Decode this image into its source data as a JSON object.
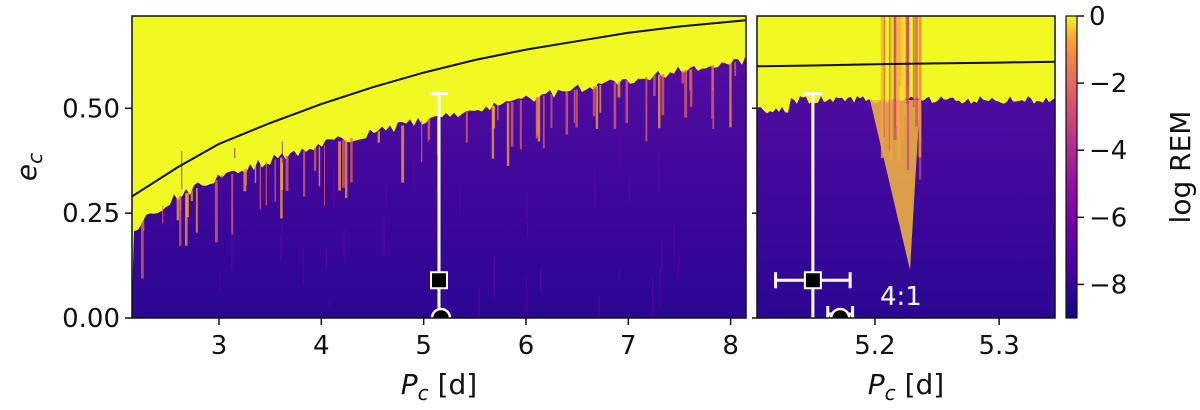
{
  "chart_data": [
    {
      "type": "heatmap",
      "panel": "left",
      "xlabel": "P_c [d]",
      "ylabel": "e_c",
      "xlim": [
        2.15,
        8.15
      ],
      "ylim": [
        0.0,
        0.72
      ],
      "xticks": [
        3,
        4,
        5,
        6,
        7,
        8
      ],
      "xtick_labels": [
        "3",
        "4",
        "5",
        "6",
        "7",
        "8"
      ],
      "yticks": [
        0.0,
        0.25,
        0.5
      ],
      "ytick_labels": [
        "0.00",
        "0.25",
        "0.50"
      ],
      "stability_boundary": {
        "x": [
          2.15,
          2.6,
          3.0,
          3.5,
          4.0,
          4.5,
          5.0,
          5.5,
          6.0,
          6.5,
          7.0,
          7.5,
          8.15
        ],
        "y": [
          0.29,
          0.36,
          0.415,
          0.465,
          0.51,
          0.55,
          0.585,
          0.615,
          0.64,
          0.66,
          0.68,
          0.695,
          0.71
        ]
      },
      "measured_point": {
        "x": 5.15,
        "y": 0.09,
        "yerr_low": 0.09,
        "yerr_high": 0.445,
        "marker": "square"
      },
      "circle_point": {
        "x": 5.17,
        "y": 0.0,
        "marker": "circle"
      }
    },
    {
      "type": "heatmap",
      "panel": "right",
      "xlabel": "P_c [d]",
      "xlim": [
        5.105,
        5.345
      ],
      "ylim": [
        0.0,
        0.72
      ],
      "xticks": [
        5.2,
        5.3
      ],
      "xtick_labels": [
        "5.2",
        "5.3"
      ],
      "stability_boundary": {
        "x": [
          5.105,
          5.15,
          5.2,
          5.25,
          5.3,
          5.345
        ],
        "y": [
          0.6,
          0.602,
          0.605,
          0.607,
          0.609,
          0.611
        ]
      },
      "measured_point": {
        "x": 5.15,
        "y": 0.09,
        "xerr": 0.03,
        "yerr_low": 0.09,
        "yerr_high": 0.445,
        "marker": "square"
      },
      "circle_point": {
        "x": 5.172,
        "y": 0.0,
        "xerr": 0.01,
        "marker": "circle"
      },
      "annotation": "4:1"
    }
  ],
  "colorbar": {
    "label": "log REM",
    "range": [
      -9,
      0
    ],
    "ticks": [
      0,
      -2,
      -4,
      -6,
      -8
    ],
    "tick_labels": [
      "0",
      "−2",
      "−4",
      "−6",
      "−8"
    ],
    "colormap": "plasma"
  },
  "colors": {
    "stable": "#1f0c8a",
    "chaotic": "#f0f921",
    "boundary_line": "#111111",
    "marker": "#000000",
    "errorbar": "#ffffff"
  }
}
